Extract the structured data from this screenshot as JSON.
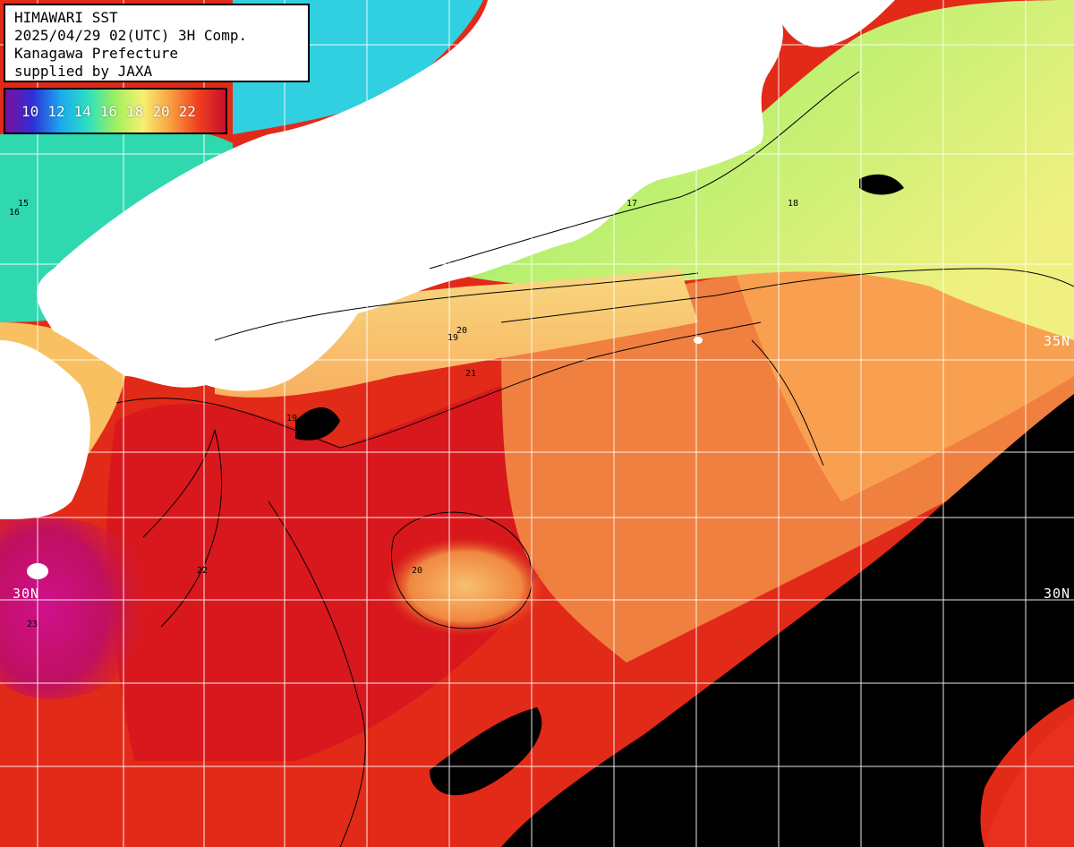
{
  "header": {
    "lines": [
      "HIMAWARI SST",
      "2025/04/29 02(UTC) 3H Comp.",
      "Kanagawa Prefecture",
      "supplied by JAXA"
    ]
  },
  "colorbar": {
    "labels": [
      "10",
      "12",
      "14",
      "16",
      "18",
      "20",
      "22"
    ],
    "gradient_colors": [
      "#7b0f9c",
      "#2f2fd8",
      "#1aa8f0",
      "#2ce0c0",
      "#9ef060",
      "#f8f070",
      "#f8a040",
      "#f04020",
      "#c8102c"
    ]
  },
  "grid": {
    "latitude_labels": {
      "lat30_left": "30N",
      "lat30_right": "30N",
      "lat35_right": "35N"
    }
  },
  "contour_labels": [
    "15",
    "16",
    "17",
    "18",
    "19",
    "20",
    "21",
    "22",
    "23"
  ],
  "colors": {
    "land": "#ffffff",
    "cloud_mask": "#000000",
    "warm_sea": "#e02418",
    "cool_sea": "#f8d070",
    "gridline": "#ffffff",
    "contour": "#000000"
  }
}
